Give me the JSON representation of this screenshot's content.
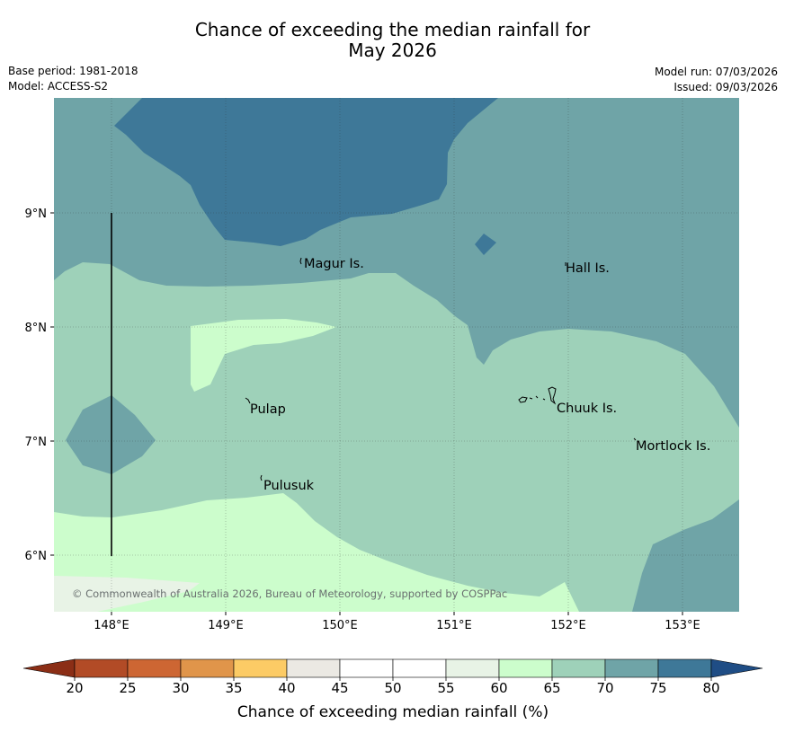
{
  "title": {
    "line1": "Chance of exceeding the median rainfall for",
    "line2": "May 2026"
  },
  "info": {
    "base_period": "Base period: 1981-2018",
    "model": "Model: ACCESS-S2",
    "model_run": "Model run: 07/03/2026",
    "issued": "Issued: 09/03/2026"
  },
  "map": {
    "lon_labels": [
      "148°E",
      "149°E",
      "150°E",
      "151°E",
      "152°E",
      "153°E"
    ],
    "lat_labels": [
      "9°N",
      "8°N",
      "7°N",
      "6°N"
    ],
    "places": [
      "Magur Is.",
      "Hall Is.",
      "Pulap",
      "Chuuk Is.",
      "Mortlock Is.",
      "Pulusuk"
    ],
    "copyright": "© Commonwealth of Australia 2026, Bureau of Meteorology, supported by COSPPac"
  },
  "colorbar": {
    "ticks": [
      "20",
      "25",
      "30",
      "35",
      "40",
      "45",
      "50",
      "55",
      "60",
      "65",
      "70",
      "75",
      "80"
    ],
    "colors": [
      "#8b2e16",
      "#b24b26",
      "#cd6633",
      "#e0954a",
      "#fccb65",
      "#ebe9e3",
      "#ffffff",
      "#ffffff",
      "#e8f3e6",
      "#ccfdcc",
      "#9ed1b9",
      "#6fa4a7",
      "#3e7898",
      "#1f4d85"
    ],
    "label": "Chance of exceeding median rainfall (%)"
  }
}
